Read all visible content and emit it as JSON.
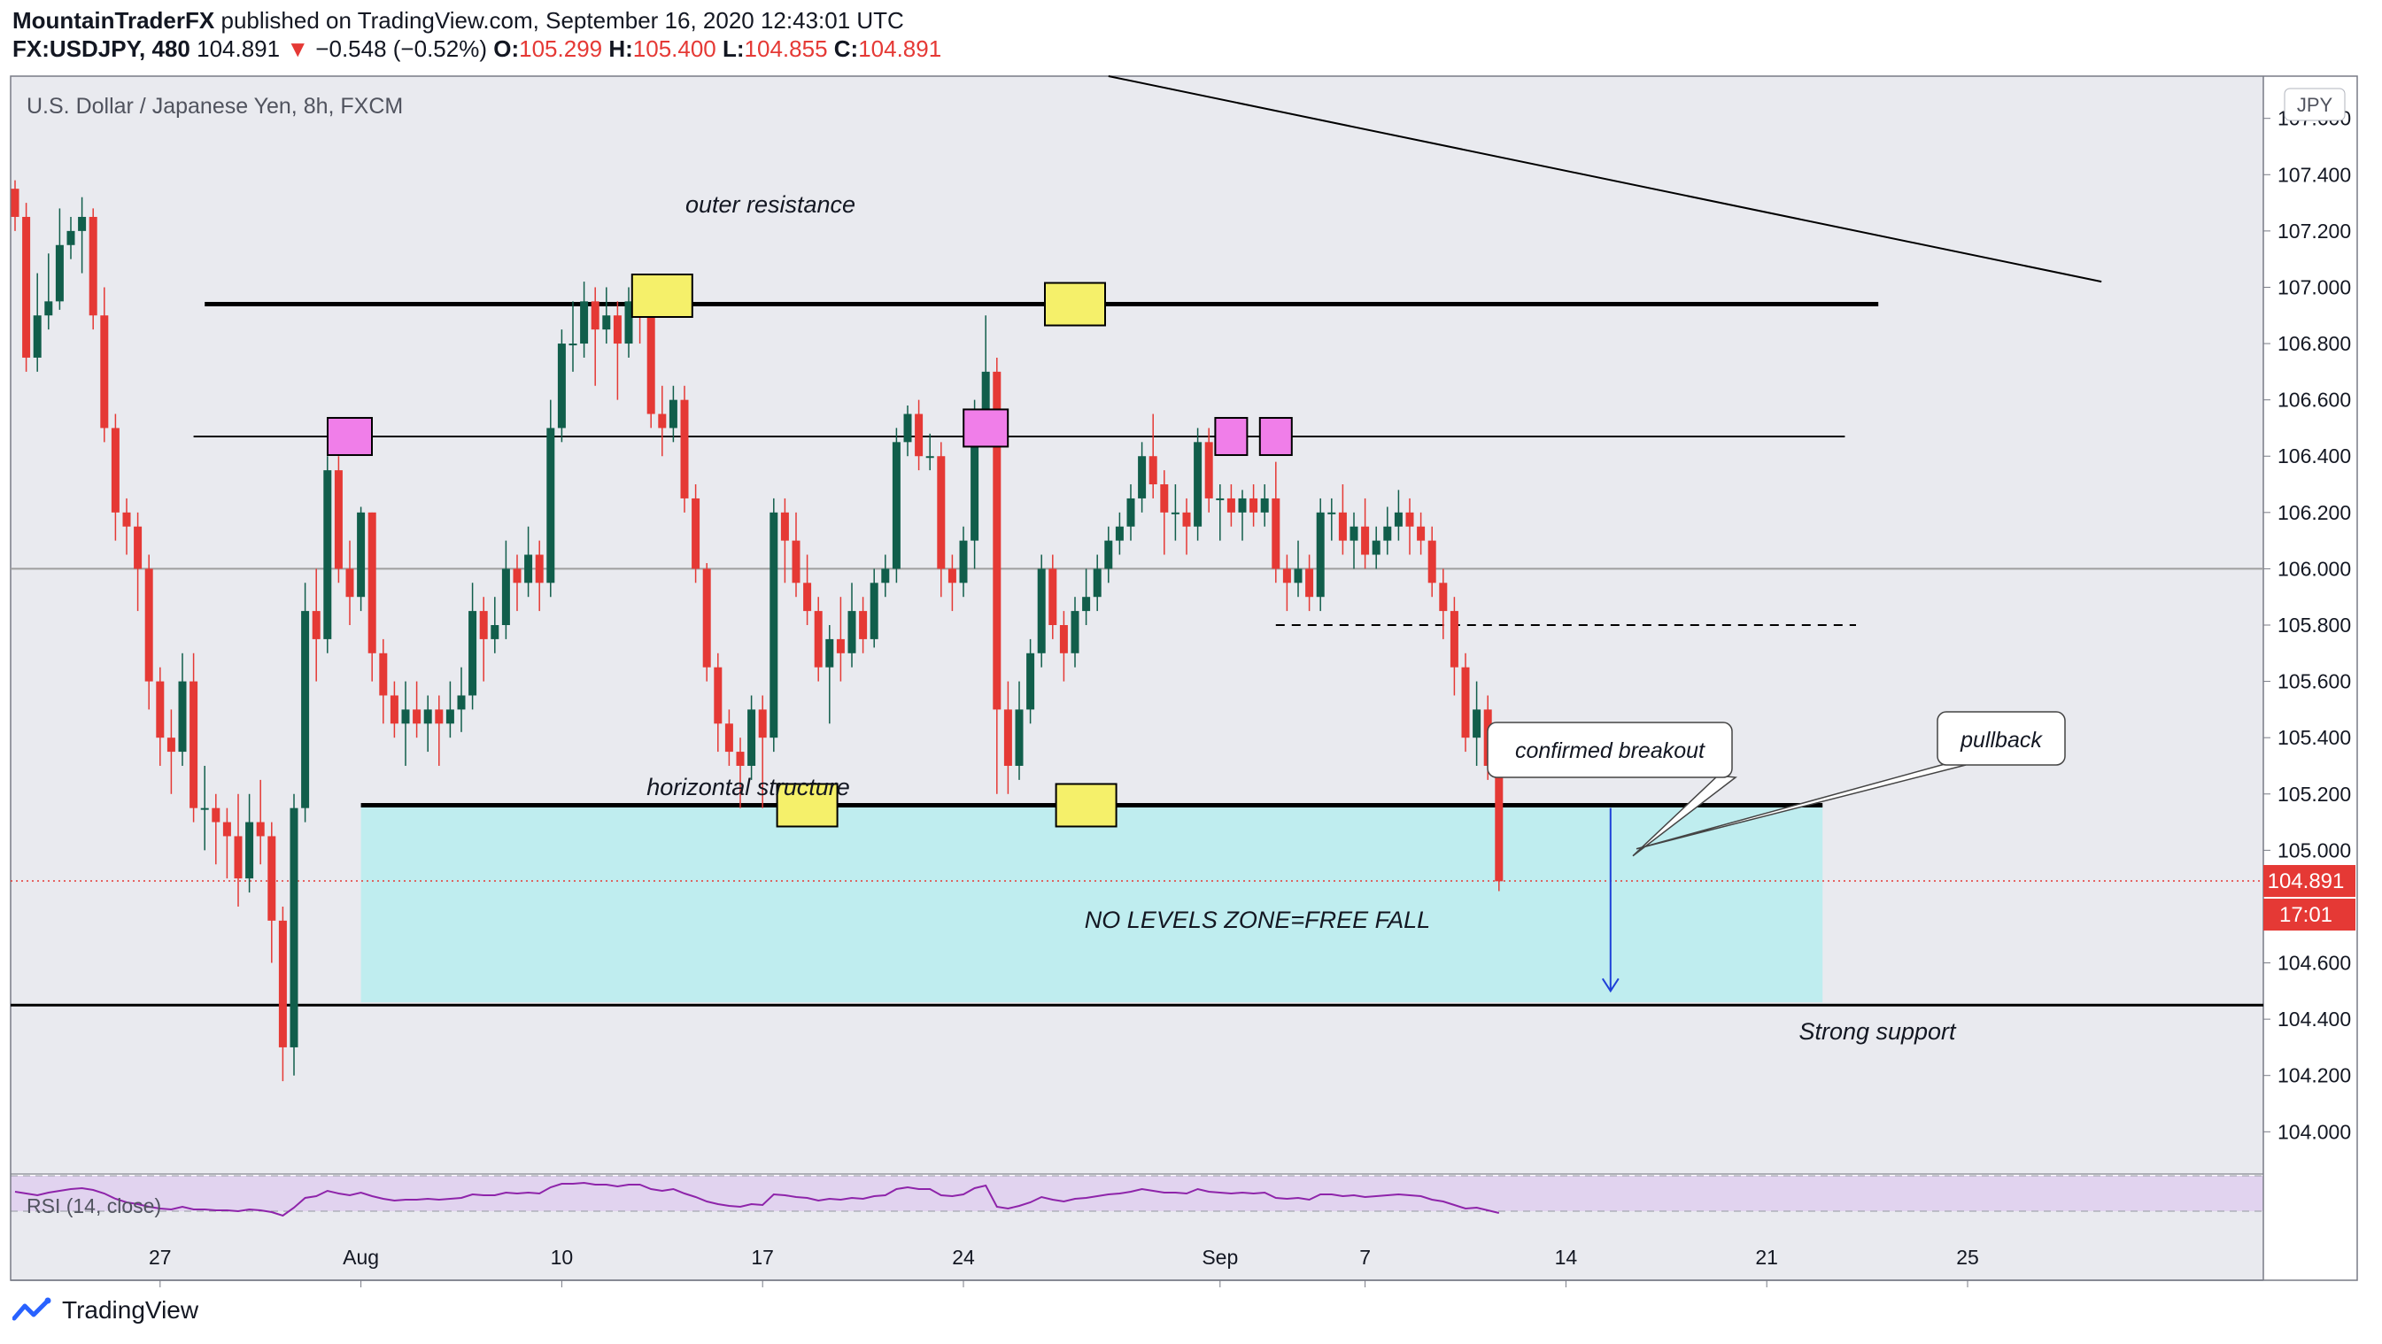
{
  "header": {
    "publisher": "MountainTraderFX",
    "published_text": "published on TradingView.com, September 16, 2020 12:43:01 UTC",
    "symbol": "FX:USDJPY, 480",
    "last": "104.891",
    "change_arrow": "▼",
    "change": "−0.548 (−0.52%)",
    "o_label": "O:",
    "o_value": "105.299",
    "h_label": "H:",
    "h_value": "105.400",
    "l_label": "L:",
    "l_value": "104.855",
    "c_label": "C:",
    "c_value": "104.891"
  },
  "chart_title": "U.S. Dollar / Japanese Yen, 8h, FXCM",
  "currency_badge": "JPY",
  "price_label": "104.891",
  "countdown_label": "17:01",
  "rsi_label": "RSI (14, close)",
  "annotations": {
    "outer_resistance": "outer resistance",
    "horizontal_structure": "horizontal structure",
    "no_levels_zone": "NO LEVELS ZONE=FREE FALL",
    "strong_support": "Strong support",
    "confirmed_breakout": "confirmed breakout",
    "pullback": "pullback"
  },
  "footer": {
    "brand": "TradingView",
    "logo_icon": "tradingview-logo-icon"
  },
  "colors": {
    "bull": "#115e4b",
    "bear": "#e53935",
    "background": "#e9eaef",
    "zone": "#bfedef",
    "yellow_box": "#f5f06a",
    "pink_box": "#f07ee9",
    "rsi": "#8e24aa"
  },
  "chart_data": {
    "type": "candlestick",
    "symbol": "USDJPY",
    "timeframe": "8h",
    "y_axis": {
      "range": [
        103.85,
        107.75
      ],
      "ticks": [
        "107.600",
        "107.400",
        "107.200",
        "107.000",
        "106.800",
        "106.600",
        "106.400",
        "106.200",
        "106.000",
        "105.800",
        "105.600",
        "105.400",
        "105.200",
        "105.000",
        "104.800",
        "104.600",
        "104.400",
        "104.200",
        "104.000"
      ]
    },
    "x_axis": {
      "ticks": [
        {
          "index": 13,
          "label": "27"
        },
        {
          "index": 31,
          "label": "Aug"
        },
        {
          "index": 49,
          "label": "10"
        },
        {
          "index": 67,
          "label": "17"
        },
        {
          "index": 85,
          "label": "24"
        },
        {
          "index": 108,
          "label": "Sep"
        },
        {
          "index": 121,
          "label": "7"
        },
        {
          "index": 139,
          "label": "14"
        },
        {
          "index": 157,
          "label": "21"
        },
        {
          "index": 175,
          "label": "25"
        }
      ]
    },
    "candles": [
      [
        107.35,
        107.25,
        107.38,
        107.2
      ],
      [
        107.25,
        106.75,
        107.3,
        106.7
      ],
      [
        106.75,
        106.9,
        107.05,
        106.7
      ],
      [
        106.9,
        106.95,
        107.12,
        106.85
      ],
      [
        106.95,
        107.15,
        107.28,
        106.92
      ],
      [
        107.15,
        107.2,
        107.25,
        107.1
      ],
      [
        107.2,
        107.25,
        107.32,
        107.05
      ],
      [
        107.25,
        106.9,
        107.28,
        106.85
      ],
      [
        106.9,
        106.5,
        107.0,
        106.45
      ],
      [
        106.5,
        106.2,
        106.55,
        106.1
      ],
      [
        106.2,
        106.15,
        106.25,
        106.05
      ],
      [
        106.15,
        106.0,
        106.2,
        105.85
      ],
      [
        106.0,
        105.6,
        106.05,
        105.5
      ],
      [
        105.6,
        105.4,
        105.65,
        105.3
      ],
      [
        105.4,
        105.35,
        105.5,
        105.2
      ],
      [
        105.35,
        105.6,
        105.7,
        105.3
      ],
      [
        105.6,
        105.15,
        105.7,
        105.1
      ],
      [
        105.15,
        105.15,
        105.3,
        105.0
      ],
      [
        105.15,
        105.1,
        105.2,
        104.95
      ],
      [
        105.1,
        105.05,
        105.15,
        104.9
      ],
      [
        105.05,
        104.9,
        105.2,
        104.8
      ],
      [
        104.9,
        105.1,
        105.2,
        104.85
      ],
      [
        105.1,
        105.05,
        105.25,
        104.95
      ],
      [
        105.05,
        104.75,
        105.1,
        104.6
      ],
      [
        104.75,
        104.3,
        104.8,
        104.18
      ],
      [
        104.3,
        105.15,
        105.2,
        104.2
      ],
      [
        105.15,
        105.85,
        105.95,
        105.1
      ],
      [
        105.85,
        105.75,
        106.0,
        105.6
      ],
      [
        105.75,
        106.35,
        106.4,
        105.7
      ],
      [
        106.35,
        106.0,
        106.4,
        105.95
      ],
      [
        106.0,
        105.9,
        106.1,
        105.8
      ],
      [
        105.9,
        106.2,
        106.22,
        105.85
      ],
      [
        106.2,
        105.7,
        106.2,
        105.6
      ],
      [
        105.7,
        105.55,
        105.75,
        105.45
      ],
      [
        105.55,
        105.45,
        105.6,
        105.4
      ],
      [
        105.45,
        105.5,
        105.6,
        105.3
      ],
      [
        105.5,
        105.45,
        105.6,
        105.4
      ],
      [
        105.45,
        105.5,
        105.55,
        105.35
      ],
      [
        105.5,
        105.45,
        105.55,
        105.3
      ],
      [
        105.45,
        105.5,
        105.6,
        105.4
      ],
      [
        105.5,
        105.55,
        105.65,
        105.42
      ],
      [
        105.55,
        105.85,
        105.95,
        105.5
      ],
      [
        105.85,
        105.75,
        105.9,
        105.6
      ],
      [
        105.75,
        105.8,
        105.9,
        105.7
      ],
      [
        105.8,
        106.0,
        106.1,
        105.75
      ],
      [
        106.0,
        105.95,
        106.05,
        105.85
      ],
      [
        105.95,
        106.05,
        106.15,
        105.9
      ],
      [
        106.05,
        105.95,
        106.1,
        105.85
      ],
      [
        105.95,
        106.5,
        106.6,
        105.9
      ],
      [
        106.5,
        106.8,
        106.85,
        106.45
      ],
      [
        106.8,
        106.8,
        106.95,
        106.7
      ],
      [
        106.8,
        106.95,
        107.02,
        106.75
      ],
      [
        106.95,
        106.85,
        107.0,
        106.65
      ],
      [
        106.85,
        106.9,
        107.0,
        106.8
      ],
      [
        106.9,
        106.8,
        106.95,
        106.6
      ],
      [
        106.8,
        106.95,
        107.0,
        106.75
      ],
      [
        106.95,
        106.9,
        106.98,
        106.8
      ],
      [
        106.9,
        106.55,
        106.95,
        106.5
      ],
      [
        106.55,
        106.5,
        106.65,
        106.4
      ],
      [
        106.5,
        106.6,
        106.65,
        106.45
      ],
      [
        106.6,
        106.25,
        106.65,
        106.2
      ],
      [
        106.25,
        106.0,
        106.3,
        105.95
      ],
      [
        106.0,
        105.65,
        106.02,
        105.6
      ],
      [
        105.65,
        105.45,
        105.7,
        105.35
      ],
      [
        105.45,
        105.35,
        105.5,
        105.3
      ],
      [
        105.35,
        105.3,
        105.4,
        105.15
      ],
      [
        105.3,
        105.5,
        105.55,
        105.25
      ],
      [
        105.5,
        105.4,
        105.55,
        105.15
      ],
      [
        105.4,
        106.2,
        106.25,
        105.35
      ],
      [
        106.2,
        106.1,
        106.25,
        105.95
      ],
      [
        106.1,
        105.95,
        106.2,
        105.9
      ],
      [
        105.95,
        105.85,
        106.05,
        105.8
      ],
      [
        105.85,
        105.65,
        105.9,
        105.6
      ],
      [
        105.65,
        105.75,
        105.8,
        105.45
      ],
      [
        105.75,
        105.7,
        105.9,
        105.6
      ],
      [
        105.7,
        105.85,
        105.95,
        105.65
      ],
      [
        105.85,
        105.75,
        105.9,
        105.7
      ],
      [
        105.75,
        105.95,
        106.0,
        105.72
      ],
      [
        105.95,
        106.0,
        106.05,
        105.9
      ],
      [
        106.0,
        106.45,
        106.5,
        105.95
      ],
      [
        106.45,
        106.55,
        106.58,
        106.4
      ],
      [
        106.55,
        106.4,
        106.6,
        106.35
      ],
      [
        106.4,
        106.4,
        106.48,
        106.35
      ],
      [
        106.4,
        106.0,
        106.45,
        105.9
      ],
      [
        106.0,
        105.95,
        106.05,
        105.85
      ],
      [
        105.95,
        106.1,
        106.15,
        105.9
      ],
      [
        106.1,
        106.55,
        106.6,
        106.0
      ],
      [
        106.55,
        106.7,
        106.9,
        106.5
      ],
      [
        106.7,
        105.5,
        106.75,
        105.2
      ],
      [
        105.5,
        105.3,
        105.6,
        105.2
      ],
      [
        105.3,
        105.5,
        105.6,
        105.25
      ],
      [
        105.5,
        105.7,
        105.75,
        105.45
      ],
      [
        105.7,
        106.0,
        106.05,
        105.65
      ],
      [
        106.0,
        105.8,
        106.05,
        105.75
      ],
      [
        105.8,
        105.7,
        105.85,
        105.6
      ],
      [
        105.7,
        105.85,
        105.9,
        105.65
      ],
      [
        105.85,
        105.9,
        106.0,
        105.8
      ],
      [
        105.9,
        106.0,
        106.05,
        105.85
      ],
      [
        106.0,
        106.1,
        106.15,
        105.95
      ],
      [
        106.1,
        106.15,
        106.2,
        106.05
      ],
      [
        106.15,
        106.25,
        106.3,
        106.1
      ],
      [
        106.25,
        106.4,
        106.45,
        106.2
      ],
      [
        106.4,
        106.3,
        106.55,
        106.25
      ],
      [
        106.3,
        106.2,
        106.35,
        106.05
      ],
      [
        106.2,
        106.2,
        106.3,
        106.1
      ],
      [
        106.2,
        106.15,
        106.25,
        106.05
      ],
      [
        106.15,
        106.45,
        106.5,
        106.1
      ],
      [
        106.45,
        106.25,
        106.5,
        106.2
      ],
      [
        106.25,
        106.25,
        106.3,
        106.1
      ],
      [
        106.25,
        106.2,
        106.3,
        106.15
      ],
      [
        106.2,
        106.25,
        106.28,
        106.1
      ],
      [
        106.25,
        106.2,
        106.3,
        106.15
      ],
      [
        106.2,
        106.25,
        106.3,
        106.15
      ],
      [
        106.25,
        106.0,
        106.38,
        105.95
      ],
      [
        106.0,
        105.95,
        106.05,
        105.85
      ],
      [
        105.95,
        106.0,
        106.1,
        105.9
      ],
      [
        106.0,
        105.9,
        106.05,
        105.85
      ],
      [
        105.9,
        106.2,
        106.25,
        105.85
      ],
      [
        106.2,
        106.2,
        106.25,
        106.1
      ],
      [
        106.2,
        106.1,
        106.3,
        106.05
      ],
      [
        106.1,
        106.15,
        106.2,
        106.0
      ],
      [
        106.15,
        106.05,
        106.25,
        106.0
      ],
      [
        106.05,
        106.1,
        106.15,
        106.0
      ],
      [
        106.1,
        106.15,
        106.22,
        106.05
      ],
      [
        106.15,
        106.2,
        106.28,
        106.1
      ],
      [
        106.2,
        106.15,
        106.25,
        106.05
      ],
      [
        106.15,
        106.1,
        106.2,
        106.05
      ],
      [
        106.1,
        105.95,
        106.15,
        105.9
      ],
      [
        105.95,
        105.85,
        106.0,
        105.75
      ],
      [
        105.85,
        105.65,
        105.9,
        105.55
      ],
      [
        105.65,
        105.4,
        105.7,
        105.35
      ],
      [
        105.4,
        105.5,
        105.6,
        105.3
      ],
      [
        105.5,
        105.3,
        105.55,
        105.25
      ],
      [
        105.3,
        104.89,
        105.4,
        104.855
      ]
    ],
    "levels": {
      "outer_resistance": 106.94,
      "upper_structure": 106.47,
      "mid_line": 106.0,
      "dashed_pullback_level": 105.8,
      "horizontal_structure": 105.16,
      "strong_support": 104.45,
      "current_price": 104.891
    },
    "zone": {
      "label": "NO LEVELS ZONE=FREE FALL",
      "from_index": 31,
      "to_index": 162,
      "top": 105.16,
      "bottom": 104.46
    },
    "trendline": [
      {
        "index": 98,
        "price": 107.75
      },
      {
        "index": 187,
        "price": 107.02
      }
    ],
    "markers": [
      {
        "type": "yellow",
        "index": 58,
        "price": 106.97
      },
      {
        "type": "yellow",
        "index": 95,
        "price": 106.94
      },
      {
        "type": "yellow",
        "index": 71,
        "price": 105.16
      },
      {
        "type": "yellow",
        "index": 96,
        "price": 105.16
      },
      {
        "type": "pink",
        "index": 30,
        "price": 106.47
      },
      {
        "type": "pink",
        "index": 87,
        "price": 106.5
      },
      {
        "type": "pink",
        "index": 109,
        "price": 106.47
      },
      {
        "type": "pink",
        "index": 113,
        "price": 106.47
      }
    ],
    "arrow": {
      "index": 143,
      "from": 105.15,
      "to": 104.5
    },
    "rsi": [
      52,
      50,
      48,
      51,
      53,
      55,
      56,
      54,
      50,
      44,
      40,
      38,
      35,
      33,
      32,
      35,
      32,
      32,
      31,
      31,
      30,
      32,
      31,
      29,
      25,
      34,
      45,
      47,
      53,
      50,
      48,
      51,
      47,
      44,
      42,
      43,
      43,
      44,
      43,
      44,
      45,
      49,
      48,
      48,
      51,
      50,
      51,
      50,
      57,
      61,
      61,
      62,
      60,
      60,
      58,
      60,
      60,
      55,
      53,
      55,
      50,
      46,
      41,
      38,
      36,
      35,
      38,
      37,
      49,
      48,
      46,
      45,
      42,
      44,
      43,
      45,
      44,
      47,
      48,
      55,
      57,
      55,
      55,
      48,
      47,
      49,
      56,
      59,
      35,
      33,
      36,
      40,
      46,
      43,
      41,
      44,
      45,
      47,
      49,
      50,
      52,
      55,
      53,
      51,
      51,
      50,
      55,
      52,
      51,
      50,
      51,
      50,
      51,
      45,
      44,
      45,
      43,
      49,
      49,
      47,
      48,
      46,
      47,
      48,
      49,
      48,
      47,
      43,
      41,
      37,
      33,
      34,
      31,
      28
    ]
  }
}
